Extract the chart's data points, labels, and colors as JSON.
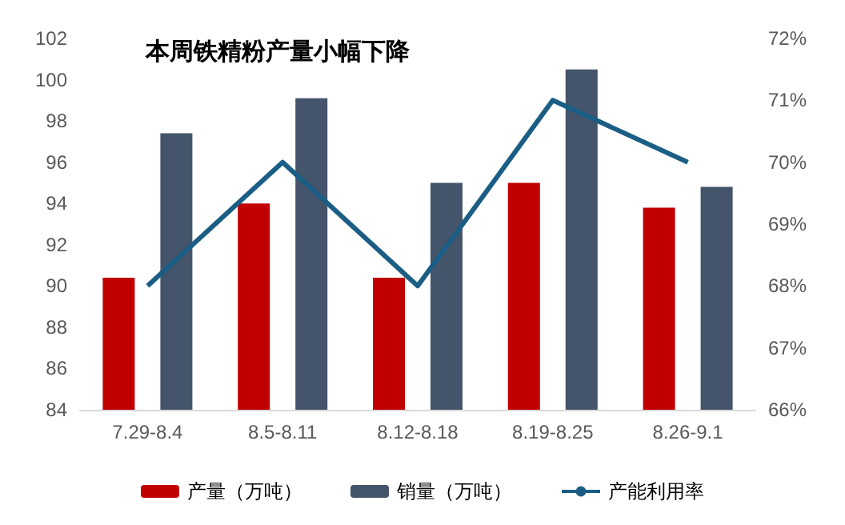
{
  "chart_data": {
    "type": "bar",
    "title": "本周铁精粉产量小幅下降",
    "categories": [
      "7.29-8.4",
      "8.5-8.11",
      "8.12-8.18",
      "8.19-8.25",
      "8.26-9.1"
    ],
    "series": [
      {
        "name": "产量（万吨）",
        "color": "#c00000",
        "values": [
          90.4,
          94.0,
          90.4,
          95.0,
          93.8
        ]
      },
      {
        "name": "销量（万吨）",
        "color": "#44546a",
        "values": [
          97.4,
          99.1,
          95.0,
          100.5,
          94.8
        ]
      },
      {
        "name": "产能利用率",
        "type": "line",
        "axis": "y2",
        "color": "#1b5e85",
        "values": [
          68,
          70,
          68,
          71,
          70
        ]
      }
    ],
    "ylim": [
      84,
      102
    ],
    "yticks": [
      84,
      86,
      88,
      90,
      92,
      94,
      96,
      98,
      100,
      102
    ],
    "y2lim": [
      66,
      72
    ],
    "y2ticks": [
      {
        "value": 66,
        "label": "66%"
      },
      {
        "value": 67,
        "label": "67%"
      },
      {
        "value": 68,
        "label": "68%"
      },
      {
        "value": 69,
        "label": "69%"
      },
      {
        "value": 70,
        "label": "70%"
      },
      {
        "value": 71,
        "label": "71%"
      },
      {
        "value": 72,
        "label": "72%"
      }
    ],
    "legend": "bottom",
    "marker": "none",
    "grid": false
  }
}
